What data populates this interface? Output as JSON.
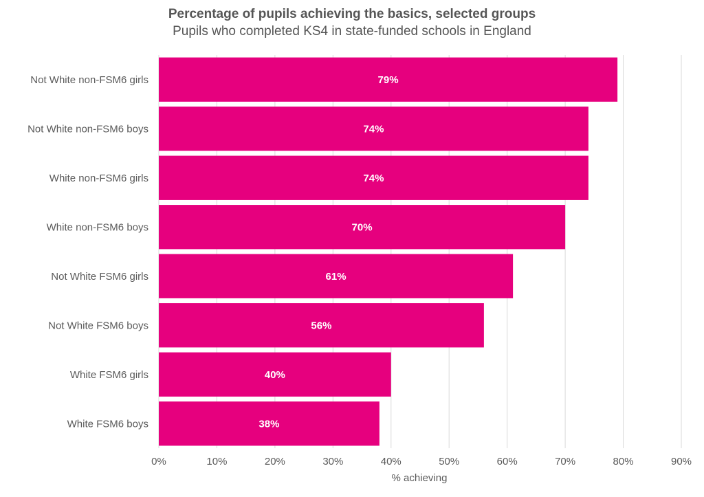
{
  "chart_data": {
    "type": "bar",
    "orientation": "horizontal",
    "title": "Percentage of pupils achieving the basics, selected groups",
    "subtitle": "Pupils who completed KS4 in state-funded schools in England",
    "xlabel": "% achieving",
    "ylabel": "",
    "categories": [
      "Not White non-FSM6 girls",
      "Not White non-FSM6 boys",
      "White non-FSM6 girls",
      "White non-FSM6 boys",
      "Not White FSM6 girls",
      "Not White FSM6 boys",
      "White FSM6 girls",
      "White FSM6 boys"
    ],
    "values": [
      79,
      74,
      74,
      70,
      61,
      56,
      40,
      38
    ],
    "data_labels": [
      "79%",
      "74%",
      "74%",
      "70%",
      "61%",
      "56%",
      "40%",
      "38%"
    ],
    "xlim": [
      0,
      90
    ],
    "xticks": [
      0,
      10,
      20,
      30,
      40,
      50,
      60,
      70,
      80,
      90
    ],
    "xtick_labels": [
      "0%",
      "10%",
      "20%",
      "30%",
      "40%",
      "50%",
      "60%",
      "70%",
      "80%",
      "90%"
    ],
    "grid": true,
    "legend": "none",
    "bar_color": "#E6007E",
    "grid_color": "#D9D9D9"
  }
}
